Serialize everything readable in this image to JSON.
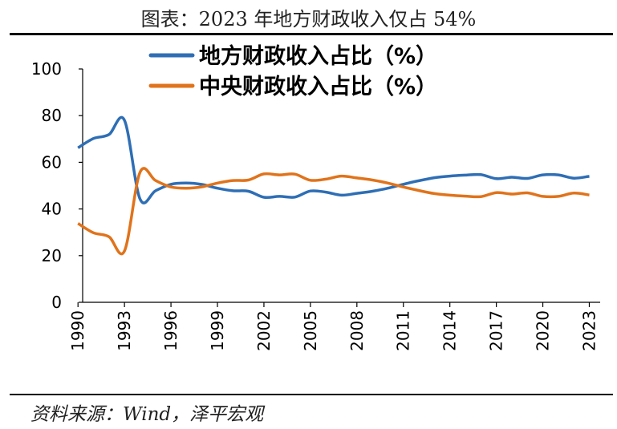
{
  "header": {
    "title": "图表：2023 年地方财政收入仅占 54%"
  },
  "footer": {
    "source": "资料来源：Wind，泽平宏观"
  },
  "colors": {
    "local": "#2e6eb5",
    "central": "#e0731b"
  },
  "chart_data": {
    "type": "line",
    "title": "",
    "xlabel": "",
    "ylabel": "",
    "ylim": [
      0,
      100
    ],
    "y_ticks": [
      0,
      20,
      40,
      60,
      80,
      100
    ],
    "x_ticks": [
      "1990",
      "1993",
      "1996",
      "1999",
      "2002",
      "2005",
      "2008",
      "2011",
      "2014",
      "2017",
      "2020",
      "2023"
    ],
    "legend_position": "top",
    "grid": false,
    "x": [
      1990,
      1991,
      1992,
      1993,
      1994,
      1995,
      1996,
      1997,
      1998,
      1999,
      2000,
      2001,
      2002,
      2003,
      2004,
      2005,
      2006,
      2007,
      2008,
      2009,
      2010,
      2011,
      2012,
      2013,
      2014,
      2015,
      2016,
      2017,
      2018,
      2019,
      2020,
      2021,
      2022,
      2023
    ],
    "series": [
      {
        "name": "地方财政收入占比（%）",
        "color": "#2e6eb5",
        "values": [
          66.2,
          70.2,
          71.9,
          78.0,
          44.3,
          47.8,
          50.6,
          51.1,
          50.5,
          48.9,
          47.8,
          47.6,
          45.0,
          45.4,
          45.1,
          47.7,
          47.2,
          45.9,
          46.7,
          47.6,
          48.9,
          50.6,
          52.1,
          53.4,
          54.1,
          54.5,
          54.7,
          53.0,
          53.6,
          53.1,
          54.6,
          54.6,
          53.2,
          54.0
        ]
      },
      {
        "name": "中央财政收入占比（%）",
        "color": "#e0731b",
        "values": [
          33.8,
          29.8,
          28.1,
          22.0,
          55.7,
          52.2,
          49.4,
          48.9,
          49.5,
          51.1,
          52.2,
          52.4,
          55.0,
          54.6,
          54.9,
          52.3,
          52.8,
          54.1,
          53.3,
          52.4,
          51.1,
          49.4,
          47.9,
          46.6,
          45.9,
          45.5,
          45.3,
          47.0,
          46.4,
          46.9,
          45.4,
          45.4,
          46.8,
          46.0
        ]
      }
    ]
  }
}
